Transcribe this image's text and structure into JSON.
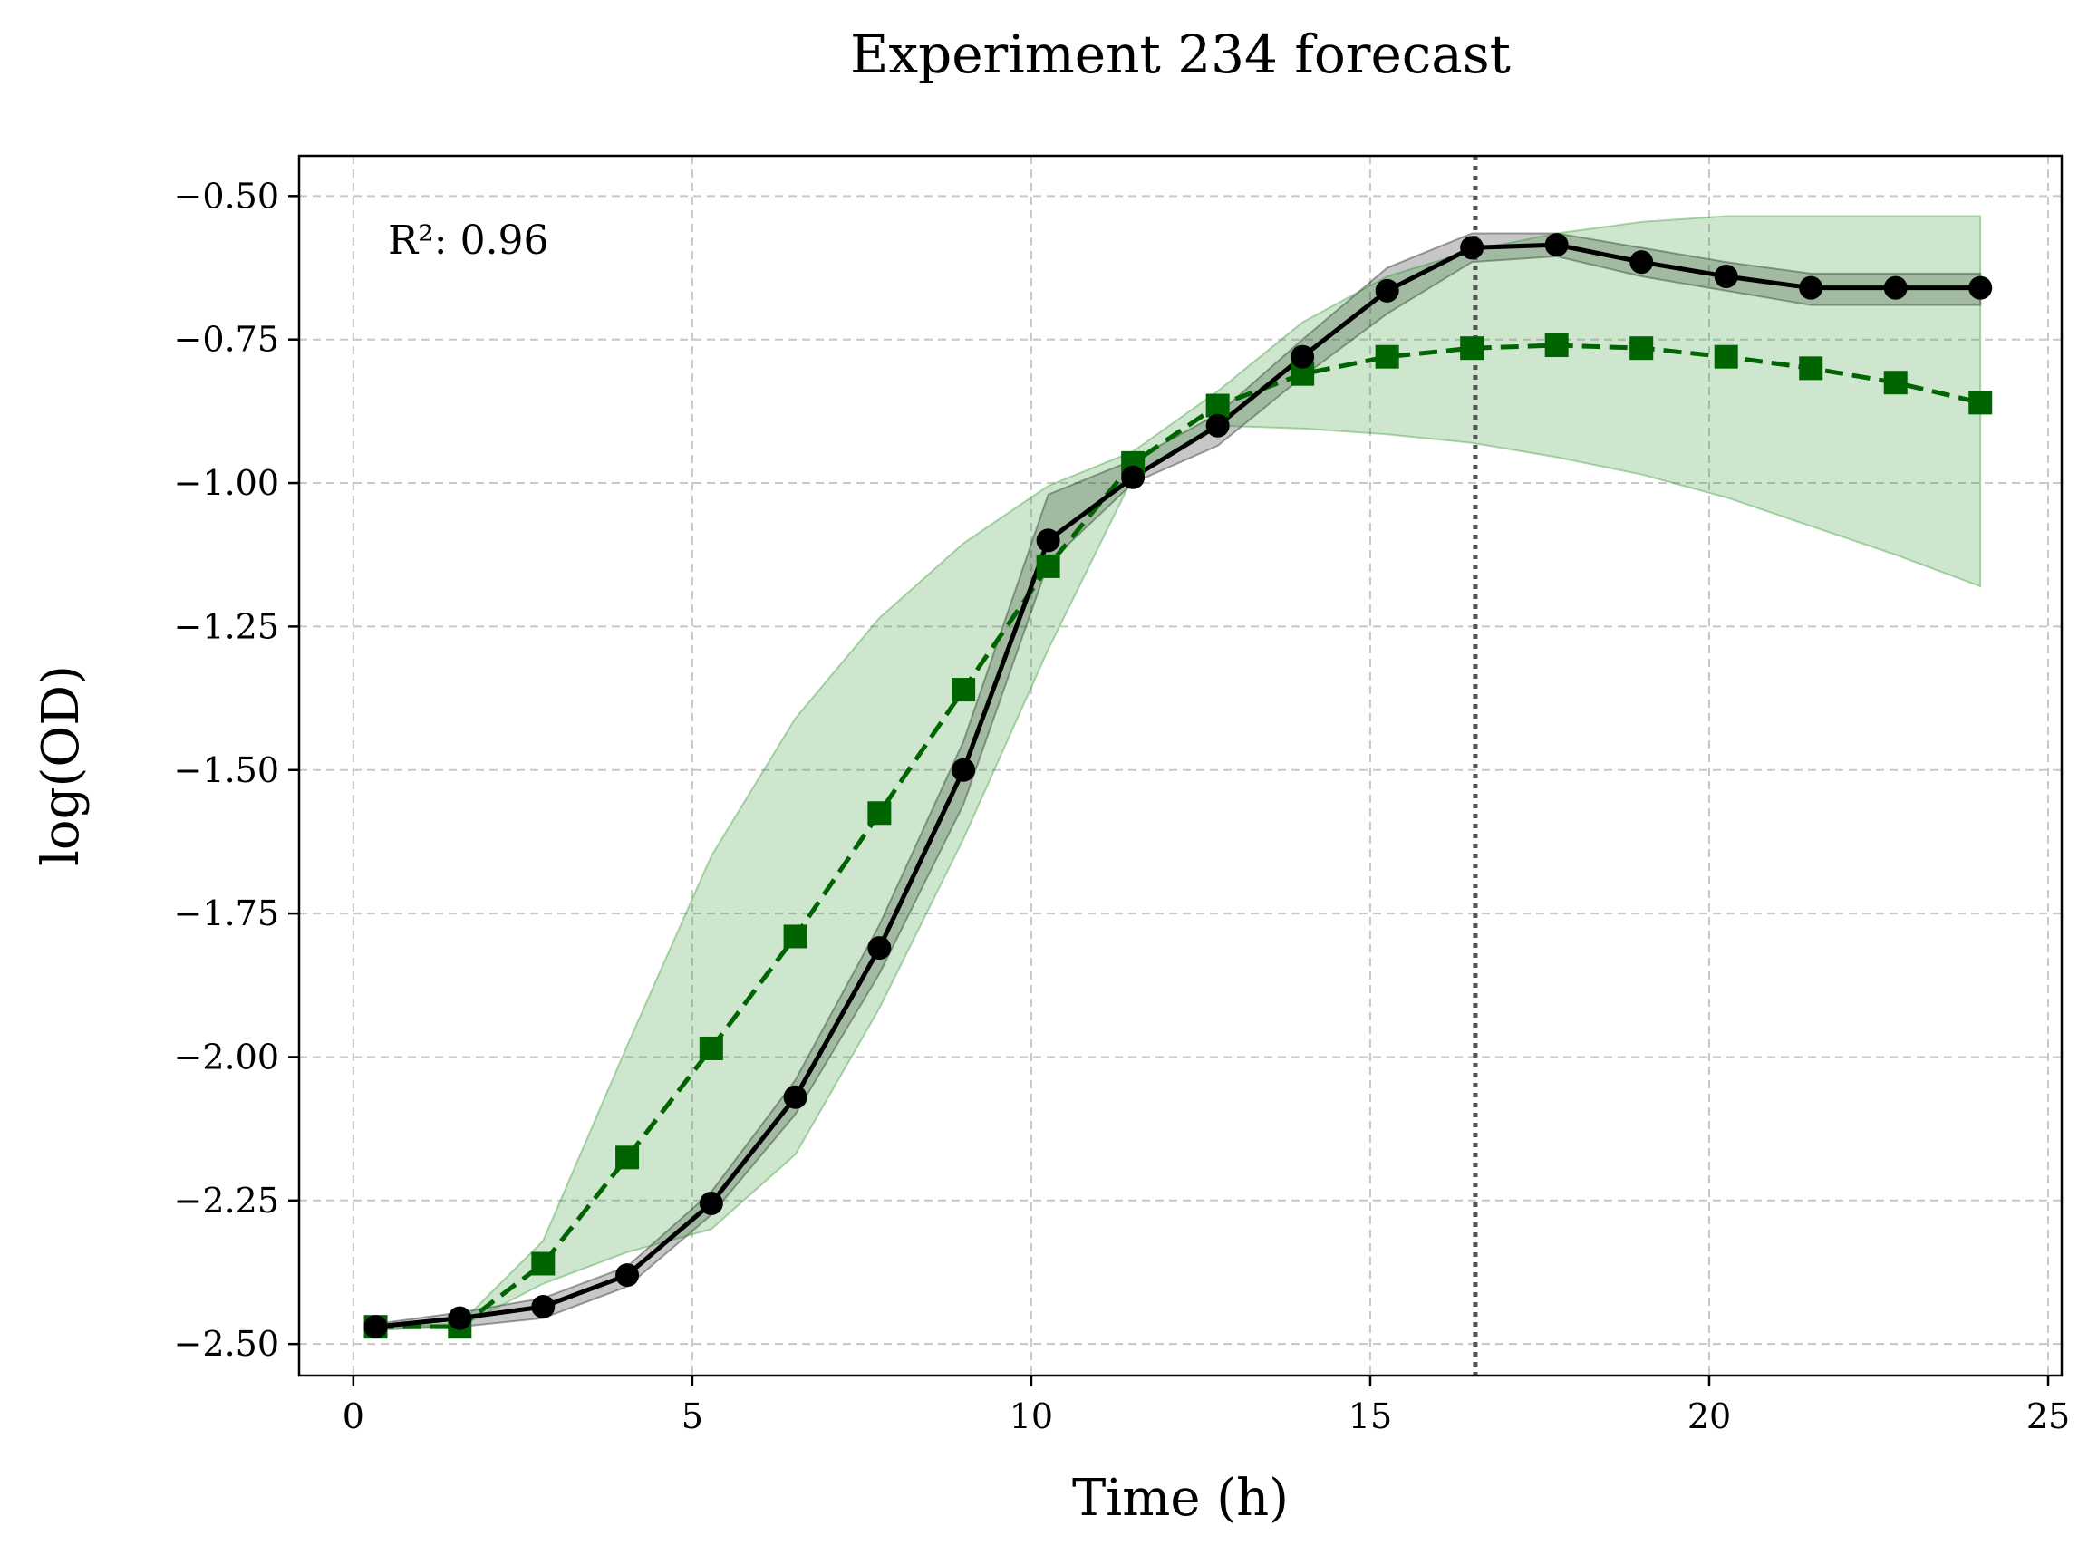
{
  "chart_data": {
    "type": "line",
    "title": "Experiment 234 forecast",
    "xlabel": "Time (h)",
    "ylabel": "log(OD)",
    "xlim": [
      -0.8,
      25.2
    ],
    "ylim": [
      -2.555,
      -0.43
    ],
    "xticks": [
      0,
      5,
      10,
      15,
      20,
      25
    ],
    "yticks": [
      -0.5,
      -0.75,
      -1.0,
      -1.25,
      -1.5,
      -1.75,
      -2.0,
      -2.25,
      -2.5
    ],
    "xtick_labels": [
      "0",
      "5",
      "10",
      "15",
      "20",
      "25"
    ],
    "ytick_labels": [
      "−0.50",
      "−0.75",
      "−1.00",
      "−1.25",
      "−1.50",
      "−1.75",
      "−2.00",
      "−2.25",
      "−2.50"
    ],
    "grid": true,
    "annotation": "R²: 0.96",
    "vline_x": 16.55,
    "x": [
      0.33,
      1.57,
      2.8,
      4.04,
      5.28,
      6.52,
      7.76,
      9.0,
      10.25,
      11.5,
      12.75,
      14.0,
      15.25,
      16.5,
      17.75,
      19.0,
      20.25,
      21.5,
      22.75,
      24.0
    ],
    "series": [
      {
        "role": "observed",
        "color": "#000000",
        "marker": "circle",
        "linestyle": "solid",
        "values": [
          -2.47,
          -2.455,
          -2.435,
          -2.38,
          -2.255,
          -2.07,
          -1.81,
          -1.5,
          -1.1,
          -0.99,
          -0.9,
          -0.78,
          -0.665,
          -0.59,
          -0.585,
          -0.615,
          -0.64,
          -0.66,
          -0.66,
          -0.66
        ],
        "band_upper": [
          -2.465,
          -2.445,
          -2.42,
          -2.365,
          -2.235,
          -2.04,
          -1.77,
          -1.45,
          -1.02,
          -0.96,
          -0.88,
          -0.75,
          -0.625,
          -0.565,
          -0.565,
          -0.59,
          -0.615,
          -0.635,
          -0.635,
          -0.635
        ],
        "band_lower": [
          -2.475,
          -2.47,
          -2.455,
          -2.4,
          -2.275,
          -2.1,
          -1.855,
          -1.56,
          -1.14,
          -1.0,
          -0.935,
          -0.815,
          -0.705,
          -0.615,
          -0.605,
          -0.64,
          -0.665,
          -0.69,
          -0.69,
          -0.69
        ]
      },
      {
        "role": "forecast",
        "color": "#006400",
        "marker": "square",
        "linestyle": "dashed",
        "values": [
          -2.47,
          -2.47,
          -2.36,
          -2.175,
          -1.985,
          -1.79,
          -1.575,
          -1.36,
          -1.145,
          -0.965,
          -0.865,
          -0.81,
          -0.78,
          -0.765,
          -0.76,
          -0.765,
          -0.78,
          -0.8,
          -0.825,
          -0.86
        ],
        "band_upper": [
          -2.47,
          -2.465,
          -2.32,
          -1.98,
          -1.65,
          -1.41,
          -1.235,
          -1.105,
          -1.005,
          -0.945,
          -0.84,
          -0.72,
          -0.64,
          -0.595,
          -0.565,
          -0.545,
          -0.535,
          -0.535,
          -0.535,
          -0.535
        ],
        "band_lower": [
          -2.47,
          -2.47,
          -2.395,
          -2.34,
          -2.3,
          -2.17,
          -1.915,
          -1.62,
          -1.29,
          -0.99,
          -0.9,
          -0.905,
          -0.915,
          -0.93,
          -0.955,
          -0.985,
          -1.025,
          -1.075,
          -1.125,
          -1.18
        ]
      }
    ]
  }
}
